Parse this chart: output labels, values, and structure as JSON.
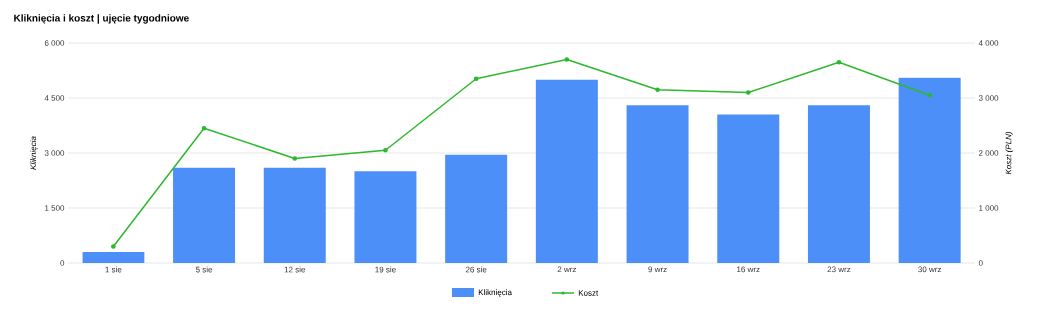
{
  "chart_data": {
    "type": "bar",
    "title": "Kliknięcia i koszt | ujęcie tygodniowe",
    "ylabel": "Kliknięcia",
    "y2label": "Koszt (PLN)",
    "categories": [
      "1 sie",
      "5 sie",
      "12 sie",
      "19 sie",
      "26 sie",
      "2 wrz",
      "9 wrz",
      "16 wrz",
      "23 wrz",
      "30 wrz"
    ],
    "series": [
      {
        "name": "Kliknięcia",
        "color": "#4d8ff8",
        "values": [
          300,
          2600,
          2600,
          2500,
          2950,
          5000,
          4300,
          4050,
          4300,
          5050
        ]
      },
      {
        "name": "Koszt",
        "type": "line",
        "axis": "y2",
        "color": "#2db82d",
        "marker": "circle",
        "values": [
          300,
          2450,
          1900,
          2050,
          3350,
          3700,
          3150,
          3100,
          3650,
          3050
        ]
      }
    ],
    "ylim": [
      0,
      6000
    ],
    "yticks": [
      0,
      {
        "value": 1500,
        "label": "1 500"
      },
      {
        "value": 3000,
        "label": "3 000"
      },
      {
        "value": 4500,
        "label": "4 500"
      },
      {
        "value": 6000,
        "label": "6 000"
      }
    ],
    "y2lim": [
      0,
      4000
    ],
    "y2ticks": [
      0,
      {
        "value": 1000,
        "label": "1 000"
      },
      {
        "value": 2000,
        "label": "2 000"
      },
      {
        "value": 3000,
        "label": "3 000"
      },
      {
        "value": 4000,
        "label": "4 000"
      }
    ],
    "grid": "y",
    "legend": "bottom"
  }
}
